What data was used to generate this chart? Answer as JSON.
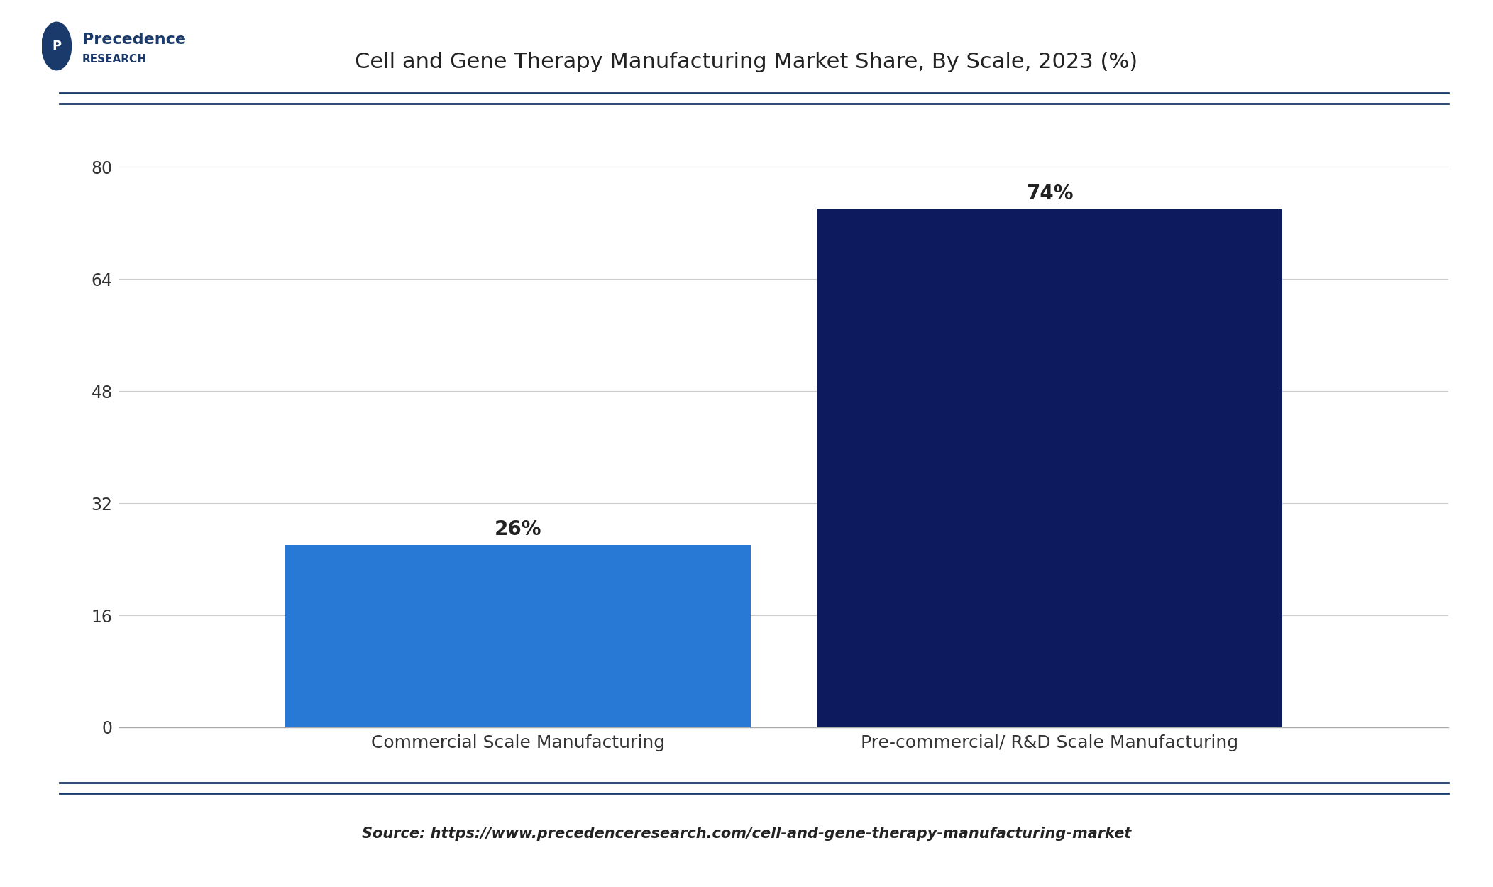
{
  "title": "Cell and Gene Therapy Manufacturing Market Share, By Scale, 2023 (%)",
  "categories": [
    "Commercial Scale Manufacturing",
    "Pre-commercial/ R&D Scale Manufacturing"
  ],
  "values": [
    26,
    74
  ],
  "bar_colors": [
    "#2878d6",
    "#0d1b5e"
  ],
  "bar_labels": [
    "26%",
    "74%"
  ],
  "yticks": [
    0,
    16,
    32,
    48,
    64,
    80
  ],
  "ylim": [
    0,
    88
  ],
  "source_text": "Source: https://www.precedenceresearch.com/cell-and-gene-therapy-manufacturing-market",
  "background_color": "#ffffff",
  "title_fontsize": 22,
  "label_fontsize": 18,
  "tick_fontsize": 17,
  "source_fontsize": 15,
  "bar_label_fontsize": 20,
  "bar_width": 0.35,
  "title_color": "#222222",
  "tick_color": "#333333",
  "source_color": "#222222",
  "grid_color": "#cccccc",
  "header_line_color": "#1a3a6b",
  "bottom_line_color": "#1a3a6b",
  "logo_text1": "Precedence",
  "logo_text2": "RESEARCH"
}
